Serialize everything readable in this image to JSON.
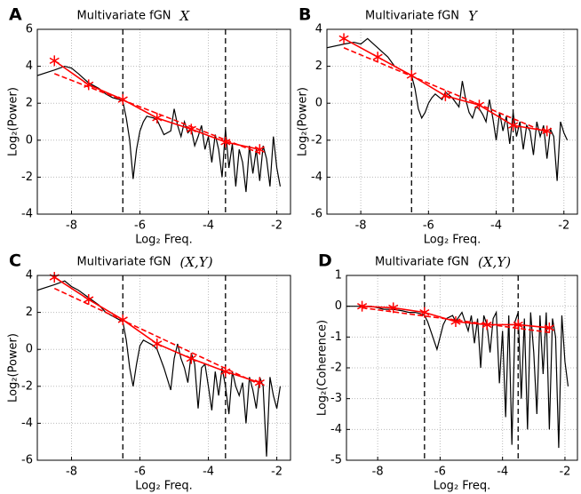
{
  "chart_data": [
    {
      "type": "line",
      "panel": "A",
      "title": "Multivariate fGN",
      "title_symbol": "X",
      "xlabel": "Log₂ Freq.",
      "ylabel": "Log₂(Power)",
      "xlim": [
        -9,
        -1.6
      ],
      "ylim": [
        -4,
        6
      ],
      "xticks": [
        -8,
        -6,
        -4,
        -2
      ],
      "yticks": [
        -4,
        -2,
        0,
        2,
        4,
        6
      ],
      "grid": true,
      "vlines": [
        -6.5,
        -3.5
      ],
      "series": [
        {
          "color": "#000000",
          "style": "solid",
          "x": [
            -9,
            -8.5,
            -8.2,
            -8,
            -7.8,
            -7.5,
            -7.2,
            -7,
            -6.8,
            -6.6,
            -6.5,
            -6.4,
            -6.3,
            -6.2,
            -6.1,
            -6,
            -5.9,
            -5.8,
            -5.6,
            -5.5,
            -5.3,
            -5.1,
            -5,
            -4.9,
            -4.8,
            -4.7,
            -4.6,
            -4.5,
            -4.4,
            -4.3,
            -4.2,
            -4.1,
            -4,
            -3.9,
            -3.8,
            -3.7,
            -3.6,
            -3.5,
            -3.4,
            -3.3,
            -3.2,
            -3.1,
            -3,
            -2.9,
            -2.8,
            -2.7,
            -2.6,
            -2.5,
            -2.4,
            -2.3,
            -2.2,
            -2.1,
            -2,
            -1.9
          ],
          "values": [
            3.5,
            3.8,
            4.0,
            3.9,
            3.6,
            3.1,
            2.8,
            2.5,
            2.3,
            2.2,
            2.1,
            1.2,
            0,
            -2.1,
            -0.5,
            0.5,
            1.0,
            1.3,
            1.2,
            1.1,
            0.3,
            0.5,
            1.7,
            0.8,
            0.2,
            1.0,
            0.4,
            0.6,
            -0.3,
            0.2,
            0.8,
            -0.5,
            0.2,
            -1.2,
            0.3,
            -0.5,
            -2.0,
            0.6,
            -1.5,
            -0.2,
            -2.5,
            -0.5,
            -1.2,
            -2.8,
            -0.3,
            -1.8,
            -0.5,
            -2.2,
            -0.3,
            -1.0,
            -2.5,
            0.2,
            -1.5,
            -2.5
          ]
        },
        {
          "color": "#ff0000",
          "style": "solid",
          "marker": "star",
          "x": [
            -8.5,
            -7.5,
            -6.5,
            -5.5,
            -4.5,
            -3.5,
            -2.5
          ],
          "values": [
            4.3,
            3.0,
            2.2,
            1.2,
            0.6,
            -0.1,
            -0.5
          ]
        },
        {
          "color": "#ff0000",
          "style": "dashed",
          "x": [
            -8.5,
            -2.5
          ],
          "values": [
            3.6,
            -0.7
          ]
        }
      ]
    },
    {
      "type": "line",
      "panel": "B",
      "title": "Multivariate fGN",
      "title_symbol": "Y",
      "xlabel": "Log₂ Freq.",
      "ylabel": "Log₂(Power)",
      "xlim": [
        -9,
        -1.6
      ],
      "ylim": [
        -6,
        4
      ],
      "xticks": [
        -8,
        -6,
        -4,
        -2
      ],
      "yticks": [
        -6,
        -4,
        -2,
        0,
        2,
        4
      ],
      "grid": true,
      "vlines": [
        -6.5,
        -3.5
      ],
      "series": [
        {
          "color": "#000000",
          "style": "solid",
          "x": [
            -9,
            -8.5,
            -8.2,
            -8,
            -7.8,
            -7.5,
            -7.2,
            -7,
            -6.8,
            -6.6,
            -6.5,
            -6.4,
            -6.3,
            -6.2,
            -6.1,
            -6,
            -5.9,
            -5.8,
            -5.6,
            -5.5,
            -5.3,
            -5.1,
            -5,
            -4.9,
            -4.8,
            -4.7,
            -4.6,
            -4.5,
            -4.4,
            -4.3,
            -4.2,
            -4.1,
            -4,
            -3.9,
            -3.8,
            -3.7,
            -3.6,
            -3.5,
            -3.4,
            -3.3,
            -3.2,
            -3.1,
            -3,
            -2.9,
            -2.8,
            -2.7,
            -2.6,
            -2.5,
            -2.4,
            -2.3,
            -2.2,
            -2.1,
            -2,
            -1.9
          ],
          "values": [
            3.0,
            3.2,
            3.3,
            3.2,
            3.5,
            3.0,
            2.5,
            2.0,
            1.8,
            1.6,
            1.5,
            0.8,
            -0.3,
            -0.8,
            -0.5,
            0,
            0.3,
            0.5,
            0.2,
            0.6,
            0.3,
            -0.2,
            1.2,
            0.2,
            -0.5,
            -0.8,
            -0.2,
            -0.3,
            -0.6,
            -1.0,
            0.2,
            -0.8,
            -2.0,
            -0.5,
            -1.5,
            -0.7,
            -2.2,
            -0.5,
            -1.8,
            -1.0,
            -2.5,
            -1.2,
            -1.5,
            -2.8,
            -1.0,
            -1.8,
            -1.2,
            -3.0,
            -1.4,
            -1.8,
            -4.2,
            -1.0,
            -1.6,
            -2.0
          ]
        },
        {
          "color": "#ff0000",
          "style": "solid",
          "marker": "star",
          "x": [
            -8.5,
            -7.5,
            -6.5,
            -5.5,
            -4.5,
            -3.5,
            -2.5
          ],
          "values": [
            3.5,
            2.5,
            1.5,
            0.4,
            -0.1,
            -1.2,
            -1.5
          ]
        },
        {
          "color": "#ff0000",
          "style": "dashed",
          "x": [
            -8.5,
            -2.5
          ],
          "values": [
            3.0,
            -1.6
          ]
        }
      ]
    },
    {
      "type": "line",
      "panel": "C",
      "title": "Multivariate fGN",
      "title_symbol": "(X,Y)",
      "xlabel": "Log₂ Freq.",
      "ylabel": "Log₂(Power)",
      "xlim": [
        -9,
        -1.6
      ],
      "ylim": [
        -6,
        4
      ],
      "xticks": [
        -8,
        -6,
        -4,
        -2
      ],
      "yticks": [
        -6,
        -4,
        -2,
        0,
        2,
        4
      ],
      "grid": true,
      "vlines": [
        -6.5,
        -3.5
      ],
      "series": [
        {
          "color": "#000000",
          "style": "solid",
          "x": [
            -9,
            -8.5,
            -8.2,
            -8,
            -7.8,
            -7.5,
            -7.2,
            -7,
            -6.8,
            -6.6,
            -6.5,
            -6.4,
            -6.3,
            -6.2,
            -6.1,
            -6,
            -5.9,
            -5.8,
            -5.6,
            -5.5,
            -5.3,
            -5.1,
            -5,
            -4.9,
            -4.8,
            -4.7,
            -4.6,
            -4.5,
            -4.4,
            -4.3,
            -4.2,
            -4.1,
            -4,
            -3.9,
            -3.8,
            -3.7,
            -3.6,
            -3.5,
            -3.4,
            -3.3,
            -3.2,
            -3.1,
            -3,
            -2.9,
            -2.8,
            -2.7,
            -2.6,
            -2.5,
            -2.4,
            -2.3,
            -2.2,
            -2.1,
            -2,
            -1.9
          ],
          "values": [
            3.2,
            3.5,
            3.7,
            3.4,
            3.2,
            2.8,
            2.4,
            2.0,
            1.8,
            1.6,
            1.5,
            0.5,
            -1.0,
            -2.0,
            -0.8,
            0.2,
            0.5,
            0.4,
            0.2,
            0,
            -1.0,
            -2.2,
            -0.5,
            0.3,
            -0.5,
            -1.0,
            -1.8,
            -0.2,
            -0.8,
            -3.2,
            -1.0,
            -0.8,
            -2.0,
            -3.3,
            -1.2,
            -2.5,
            -1.0,
            -2.0,
            -3.5,
            -1.2,
            -2.0,
            -2.5,
            -1.8,
            -4.0,
            -1.5,
            -2.2,
            -3.2,
            -1.5,
            -2.0,
            -5.8,
            -1.5,
            -2.5,
            -3.2,
            -2.0
          ]
        },
        {
          "color": "#ff0000",
          "style": "solid",
          "marker": "star",
          "x": [
            -8.5,
            -7.5,
            -6.5,
            -5.5,
            -4.5,
            -3.5,
            -2.5
          ],
          "values": [
            3.9,
            2.7,
            1.6,
            0.3,
            -0.5,
            -1.2,
            -1.8
          ]
        },
        {
          "color": "#ff0000",
          "style": "dashed",
          "x": [
            -8.5,
            -2.5
          ],
          "values": [
            3.3,
            -1.9
          ]
        }
      ]
    },
    {
      "type": "line",
      "panel": "D",
      "title": "Multivariate fGN",
      "title_symbol": "(X,Y)",
      "xlabel": "Log₂ Freq.",
      "ylabel": "Log₂(Coherence)",
      "xlim": [
        -9,
        -1.6
      ],
      "ylim": [
        -5,
        1
      ],
      "xticks": [
        -8,
        -6,
        -4,
        -2
      ],
      "yticks": [
        -5,
        -4,
        -3,
        -2,
        -1,
        0,
        1
      ],
      "grid": true,
      "vlines": [
        -6.5,
        -3.5
      ],
      "series": [
        {
          "color": "#000000",
          "style": "solid",
          "x": [
            -9,
            -8.5,
            -8.2,
            -8,
            -7.8,
            -7.5,
            -7.2,
            -7,
            -6.8,
            -6.6,
            -6.5,
            -6.4,
            -6.3,
            -6.2,
            -6.1,
            -6,
            -5.9,
            -5.8,
            -5.6,
            -5.5,
            -5.3,
            -5.1,
            -5,
            -4.9,
            -4.8,
            -4.7,
            -4.6,
            -4.5,
            -4.4,
            -4.3,
            -4.2,
            -4.1,
            -4,
            -3.9,
            -3.8,
            -3.7,
            -3.6,
            -3.5,
            -3.4,
            -3.3,
            -3.2,
            -3.1,
            -3,
            -2.9,
            -2.8,
            -2.7,
            -2.6,
            -2.5,
            -2.4,
            -2.3,
            -2.2,
            -2.1,
            -2,
            -1.9
          ],
          "values": [
            0,
            0,
            0,
            -0.05,
            -0.1,
            -0.1,
            -0.15,
            -0.2,
            -0.2,
            -0.25,
            -0.3,
            -0.5,
            -0.8,
            -1.1,
            -1.4,
            -1.0,
            -0.6,
            -0.4,
            -0.3,
            -0.5,
            -0.2,
            -0.8,
            -0.3,
            -1.2,
            -0.4,
            -2.0,
            -0.3,
            -0.6,
            -1.5,
            -0.4,
            -0.2,
            -2.5,
            -0.8,
            -3.6,
            -0.3,
            -4.5,
            -0.5,
            -0.2,
            -3.0,
            -0.4,
            -4.0,
            -0.2,
            -1.5,
            -3.5,
            -0.3,
            -2.2,
            -0.2,
            -4.0,
            -0.4,
            -1.0,
            -4.6,
            -0.3,
            -1.8,
            -2.6
          ]
        },
        {
          "color": "#ff0000",
          "style": "solid",
          "marker": "star",
          "x": [
            -8.5,
            -7.5,
            -6.5,
            -5.5,
            -4.5,
            -3.5,
            -2.5
          ],
          "values": [
            0,
            -0.05,
            -0.2,
            -0.5,
            -0.6,
            -0.6,
            -0.7
          ]
        },
        {
          "color": "#ff0000",
          "style": "dashed",
          "x": [
            -8.5,
            -2.5
          ],
          "values": [
            -0.05,
            -0.85
          ]
        }
      ]
    }
  ]
}
